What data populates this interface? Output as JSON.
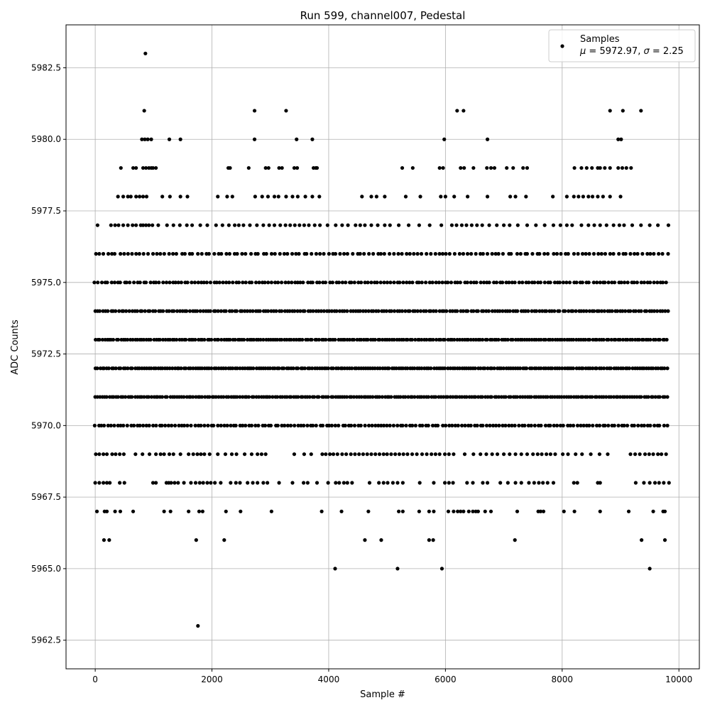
{
  "chart_data": {
    "type": "scatter",
    "title": "Run 599, channel007, Pedestal",
    "xlabel": "Sample #",
    "ylabel": "ADC Counts",
    "xlim": [
      -500,
      10350
    ],
    "ylim": [
      5961.5,
      5984
    ],
    "x_ticks": [
      0,
      2000,
      4000,
      6000,
      8000,
      10000
    ],
    "y_ticks": [
      5962.5,
      5965.0,
      5967.5,
      5970.0,
      5972.5,
      5975.0,
      5977.5,
      5980.0,
      5982.5
    ],
    "grid": true,
    "legend_position": "top-right",
    "legend": {
      "line1": "Samples",
      "line2_parts": [
        "μ",
        " = 5972.97, ",
        "σ",
        " = 2.25"
      ]
    },
    "sample_range": [
      0,
      9830
    ],
    "colors": {
      "marker": "#000000",
      "grid": "#b0b0b0",
      "frame": "#000000"
    },
    "outlier_points": [
      [
        860,
        5983
      ],
      [
        840,
        5981
      ],
      [
        2730,
        5981
      ],
      [
        3270,
        5981
      ],
      [
        6200,
        5981
      ],
      [
        6310,
        5981
      ],
      [
        8820,
        5981
      ],
      [
        9040,
        5981
      ],
      [
        9350,
        5981
      ],
      [
        800,
        5980
      ],
      [
        850,
        5980
      ],
      [
        900,
        5980
      ],
      [
        960,
        5980
      ],
      [
        1270,
        5980
      ],
      [
        1460,
        5980
      ],
      [
        2730,
        5980
      ],
      [
        3450,
        5980
      ],
      [
        3720,
        5980
      ],
      [
        5980,
        5980
      ],
      [
        6720,
        5980
      ],
      [
        8960,
        5980
      ],
      [
        9010,
        5980
      ],
      [
        4110,
        5965
      ],
      [
        5180,
        5965
      ],
      [
        5940,
        5965
      ],
      [
        9500,
        5965
      ],
      [
        150,
        5966
      ],
      [
        240,
        5966
      ],
      [
        1730,
        5966
      ],
      [
        2210,
        5966
      ],
      [
        4620,
        5966
      ],
      [
        4900,
        5966
      ],
      [
        5720,
        5966
      ],
      [
        5790,
        5966
      ],
      [
        7190,
        5966
      ],
      [
        9360,
        5966
      ],
      [
        9760,
        5966
      ],
      [
        1760,
        5963
      ]
    ],
    "levels": [
      {
        "y": 5979,
        "x": [
          440,
          650,
          700,
          820,
          870,
          920,
          960,
          990,
          1040,
          2280,
          2310,
          2630,
          2920,
          2970,
          3150,
          3200,
          3410,
          3460,
          3740,
          3780,
          3800,
          5260,
          5440,
          5900,
          5960,
          6260,
          6320,
          6480,
          6710,
          6780,
          6840,
          7050,
          7160,
          7330,
          7400,
          8210,
          8330,
          8420,
          8510,
          8610,
          8650,
          8730,
          8820,
          8960,
          9030,
          9100,
          9180
        ]
      },
      {
        "y": 5978,
        "x": [
          390,
          480,
          560,
          610,
          700,
          760,
          820,
          880,
          1150,
          1280,
          1460,
          1580,
          2100,
          2260,
          2350,
          2740,
          2860,
          2960,
          3070,
          3140,
          3270,
          3380,
          3470,
          3600,
          3720,
          3840,
          4570,
          4730,
          4820,
          4960,
          5320,
          5570,
          5920,
          6000,
          6150,
          6380,
          6720,
          7110,
          7200,
          7380,
          7840,
          8080,
          8200,
          8280,
          8360,
          8450,
          8520,
          8610,
          8700,
          8820,
          9000
        ]
      },
      {
        "y": 5977,
        "x": [
          40,
          270,
          340,
          400,
          480,
          560,
          640,
          700,
          780,
          820,
          870,
          920,
          980,
          1080,
          1230,
          1340,
          1450,
          1570,
          1660,
          1800,
          1920,
          2070,
          2180,
          2290,
          2390,
          2460,
          2540,
          2650,
          2770,
          2880,
          2980,
          3070,
          3170,
          3260,
          3340,
          3420,
          3500,
          3580,
          3660,
          3760,
          3850,
          3980,
          4120,
          4230,
          4330,
          4460,
          4540,
          4620,
          4730,
          4840,
          4960,
          5050,
          5200,
          5370,
          5550,
          5730,
          5930,
          6110,
          6190,
          6280,
          6360,
          6450,
          6540,
          6630,
          6750,
          6880,
          7000,
          7100,
          7240,
          7400,
          7550,
          7700,
          7850,
          7970,
          8080,
          8170,
          8330,
          8450,
          8550,
          8650,
          8760,
          8880,
          8980,
          9060,
          9200,
          9350,
          9500,
          9640,
          9820
        ]
      },
      {
        "y": 5976,
        "x": 70
      },
      {
        "y": 5975,
        "x": 55
      },
      {
        "y": 5974,
        "x": 45
      },
      {
        "y": 5973,
        "x": 40
      },
      {
        "y": 5972,
        "x": 40
      },
      {
        "y": 5971,
        "x": 40
      },
      {
        "y": 5970,
        "x": 55
      },
      {
        "y": 5969,
        "x": [
          10,
          70,
          140,
          200,
          290,
          350,
          420,
          490,
          690,
          810,
          930,
          1040,
          1120,
          1180,
          1270,
          1340,
          1460,
          1600,
          1680,
          1750,
          1810,
          1870,
          1960,
          2100,
          2230,
          2340,
          2420,
          2560,
          2680,
          2780,
          2850,
          2920,
          3410,
          3580,
          3700,
          3890,
          3950,
          4020,
          4080,
          4150,
          4230,
          4300,
          4380,
          4450,
          4520,
          4590,
          4660,
          4730,
          4800,
          4870,
          4940,
          5000,
          5070,
          5140,
          5210,
          5280,
          5350,
          5430,
          5510,
          5600,
          5680,
          5760,
          5830,
          5900,
          5990,
          6060,
          6140,
          6330,
          6480,
          6600,
          6700,
          6800,
          6890,
          7000,
          7100,
          7200,
          7300,
          7400,
          7500,
          7580,
          7650,
          7730,
          7800,
          7880,
          8010,
          8100,
          8230,
          8340,
          8490,
          8640,
          8780,
          9170,
          9250,
          9330,
          9420,
          9490,
          9560,
          9640,
          9700,
          9780
        ]
      },
      {
        "y": 5968,
        "x": [
          0,
          70,
          140,
          200,
          250,
          420,
          500,
          990,
          1040,
          1220,
          1260,
          1300,
          1360,
          1420,
          1520,
          1640,
          1720,
          1790,
          1850,
          1920,
          1980,
          2050,
          2150,
          2320,
          2410,
          2480,
          2610,
          2700,
          2780,
          2880,
          2950,
          3150,
          3380,
          3570,
          3640,
          3800,
          3990,
          4120,
          4180,
          4260,
          4320,
          4400,
          4700,
          4860,
          4940,
          5010,
          5100,
          5180,
          5270,
          5560,
          5800,
          5990,
          6060,
          6130,
          6370,
          6470,
          6640,
          6720,
          6940,
          7070,
          7200,
          7300,
          7430,
          7520,
          7600,
          7670,
          7750,
          7850,
          8200,
          8260,
          8610,
          8650,
          9260,
          9400,
          9500,
          9590,
          9660,
          9740,
          9830
        ]
      },
      {
        "y": 5967,
        "x": [
          30,
          160,
          200,
          340,
          430,
          650,
          1180,
          1290,
          1600,
          1780,
          1840,
          2240,
          2490,
          3020,
          3880,
          4220,
          4680,
          5200,
          5270,
          5550,
          5720,
          5800,
          6050,
          6140,
          6210,
          6260,
          6310,
          6400,
          6470,
          6520,
          6560,
          6680,
          6780,
          7230,
          7590,
          7630,
          7680,
          8030,
          8210,
          8650,
          9140,
          9560,
          9730,
          9760
        ]
      }
    ]
  }
}
